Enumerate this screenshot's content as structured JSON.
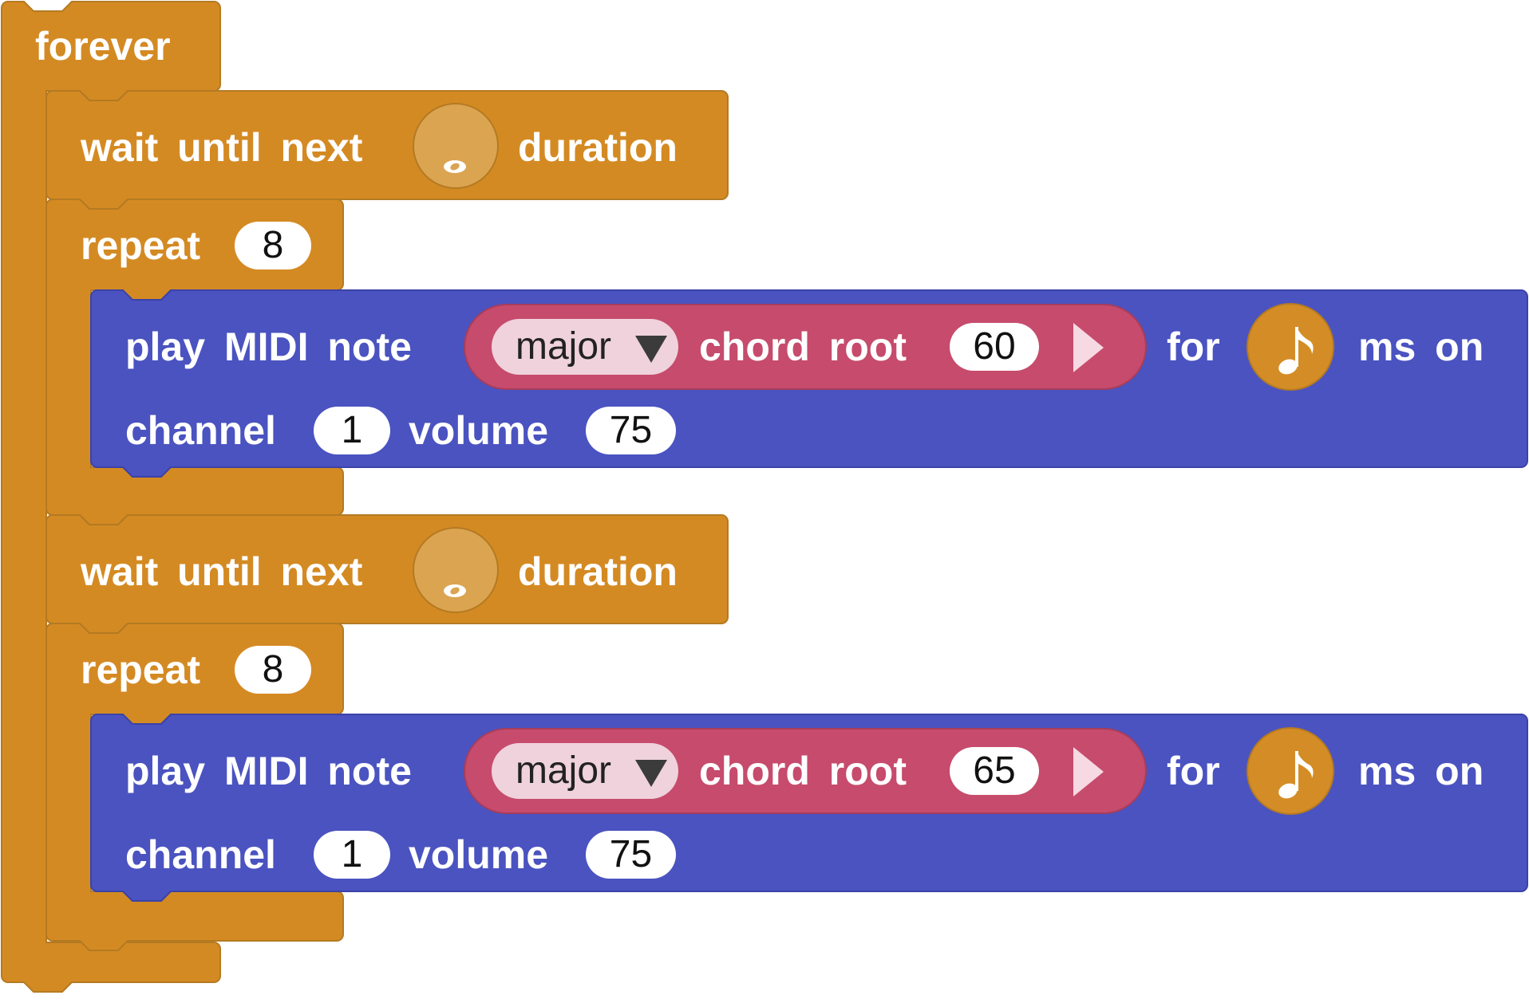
{
  "colors": {
    "control_block": "#d48a23",
    "control_block_border": "#b47a22",
    "music_block": "#4a53c0",
    "music_block_border": "#3b43a6",
    "chord_reporter": "#c64b6c",
    "chord_reporter_border": "#a83d5b",
    "dropdown_bg": "#efd2dc",
    "field_bg": "#ffffff"
  },
  "forever": {
    "label": "forever"
  },
  "sections": [
    {
      "wait": {
        "label_before": "wait until next",
        "duration_icon": "whole-note-icon",
        "label_after": "duration"
      },
      "repeat": {
        "label": "repeat",
        "count": "8"
      },
      "play": {
        "label_play": "play MIDI note",
        "chord": {
          "mode": "major",
          "label": "chord root",
          "root": "60",
          "expand_icon": "expand-triangle-icon"
        },
        "label_for": "for",
        "note_icon": "eighth-note-icon",
        "label_ms_on": "ms on",
        "label_channel": "channel",
        "channel": "1",
        "label_volume": "volume",
        "volume": "75"
      }
    },
    {
      "wait": {
        "label_before": "wait until next",
        "duration_icon": "whole-note-icon",
        "label_after": "duration"
      },
      "repeat": {
        "label": "repeat",
        "count": "8"
      },
      "play": {
        "label_play": "play MIDI note",
        "chord": {
          "mode": "major",
          "label": "chord root",
          "root": "65",
          "expand_icon": "expand-triangle-icon"
        },
        "label_for": "for",
        "note_icon": "eighth-note-icon",
        "label_ms_on": "ms on",
        "label_channel": "channel",
        "channel": "1",
        "label_volume": "volume",
        "volume": "75"
      }
    }
  ]
}
